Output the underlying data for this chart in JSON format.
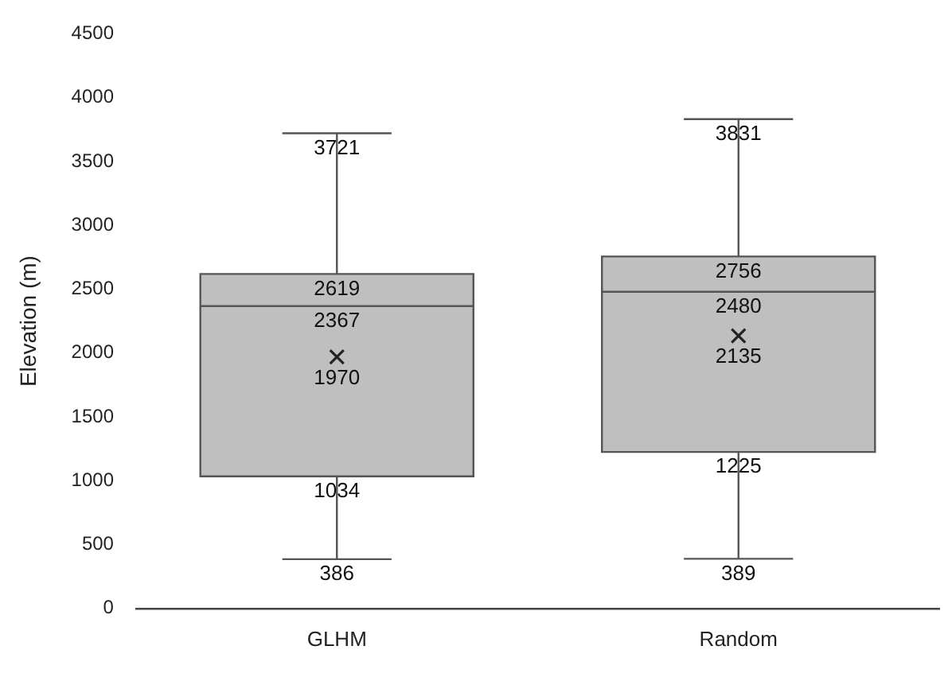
{
  "chart_data": {
    "type": "box",
    "ylabel": "Elevation (m)",
    "categories": [
      "GLHM",
      "Random"
    ],
    "boxes": [
      {
        "low": 386,
        "q1": 1034,
        "median": 2367,
        "q3": 2619,
        "high": 3721
      },
      {
        "low": 389,
        "q1": 1225,
        "median": 2480,
        "q3": 2756,
        "high": 3831
      }
    ],
    "color": "#bfbfbf",
    "ylim": [
      0,
      4500
    ],
    "yticks": [
      0,
      500,
      1000,
      1500,
      2000,
      2500,
      3000,
      3500,
      4000,
      4500
    ],
    "series": [
      {
        "type": "scatter",
        "x": [
          "GLHM",
          "Random"
        ],
        "values": [
          1970,
          2135
        ],
        "color": "#222222",
        "marker": "cross"
      }
    ],
    "legend": false,
    "annotations": [
      {
        "text": "3721",
        "x": "GLHM",
        "y": 3721
      },
      {
        "text": "2619",
        "x": "GLHM",
        "y": 2619
      },
      {
        "text": "2367",
        "x": "GLHM",
        "y": 2367
      },
      {
        "text": "1970",
        "x": "GLHM",
        "y": 1970
      },
      {
        "text": "1034",
        "x": "GLHM",
        "y": 1034
      },
      {
        "text": "386",
        "x": "GLHM",
        "y": 386
      },
      {
        "text": "3831",
        "x": "Random",
        "y": 3831
      },
      {
        "text": "2756",
        "x": "Random",
        "y": 2756
      },
      {
        "text": "2480",
        "x": "Random",
        "y": 2480
      },
      {
        "text": "2135",
        "x": "Random",
        "y": 2135
      },
      {
        "text": "1225",
        "x": "Random",
        "y": 1225
      },
      {
        "text": "389",
        "x": "Random",
        "y": 389
      }
    ]
  }
}
